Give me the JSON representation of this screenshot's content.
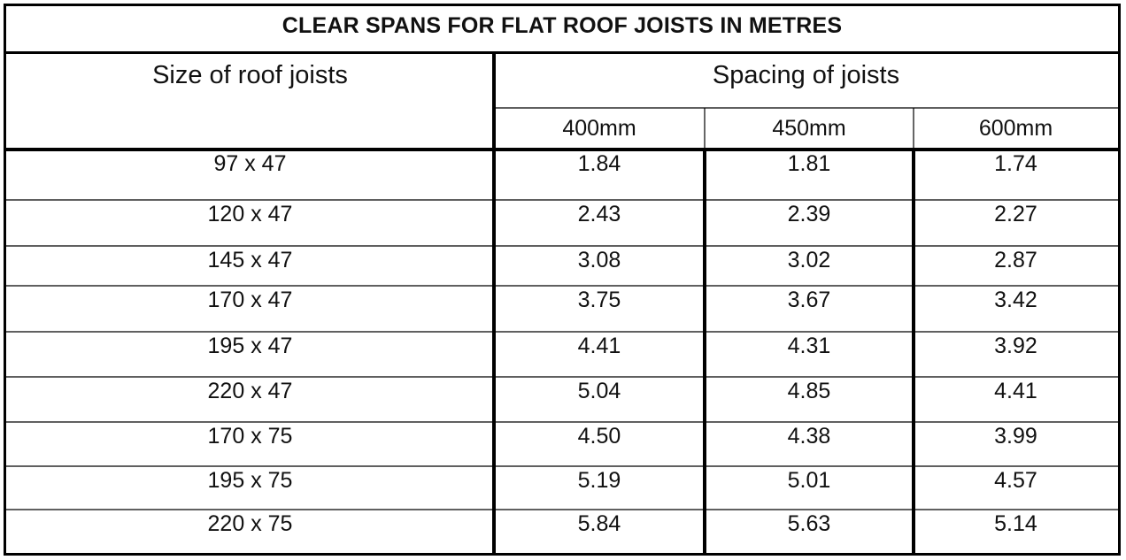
{
  "title": "CLEAR SPANS FOR FLAT ROOF JOISTS IN METRES",
  "headers": {
    "size": "Size of roof joists",
    "spacing": "Spacing of joists",
    "spacings": [
      "400mm",
      "450mm",
      "600mm"
    ]
  },
  "rows": [
    {
      "size": "97 x 47",
      "values": [
        "1.84",
        "1.81",
        "1.74"
      ]
    },
    {
      "size": "120 x 47",
      "values": [
        "2.43",
        "2.39",
        "2.27"
      ]
    },
    {
      "size": "145 x 47",
      "values": [
        "3.08",
        "3.02",
        "2.87"
      ]
    },
    {
      "size": "170 x 47",
      "values": [
        "3.75",
        "3.67",
        "3.42"
      ]
    },
    {
      "size": "195 x 47",
      "values": [
        "4.41",
        "4.31",
        "3.92"
      ]
    },
    {
      "size": "220 x 47",
      "values": [
        "5.04",
        "4.85",
        "4.41"
      ]
    },
    {
      "size": "170 x 75",
      "values": [
        "4.50",
        "4.38",
        "3.99"
      ]
    },
    {
      "size": "195 x 75",
      "values": [
        "5.19",
        "5.01",
        "4.57"
      ]
    },
    {
      "size": "220 x 75",
      "values": [
        "5.84",
        "5.63",
        "5.14"
      ]
    }
  ]
}
